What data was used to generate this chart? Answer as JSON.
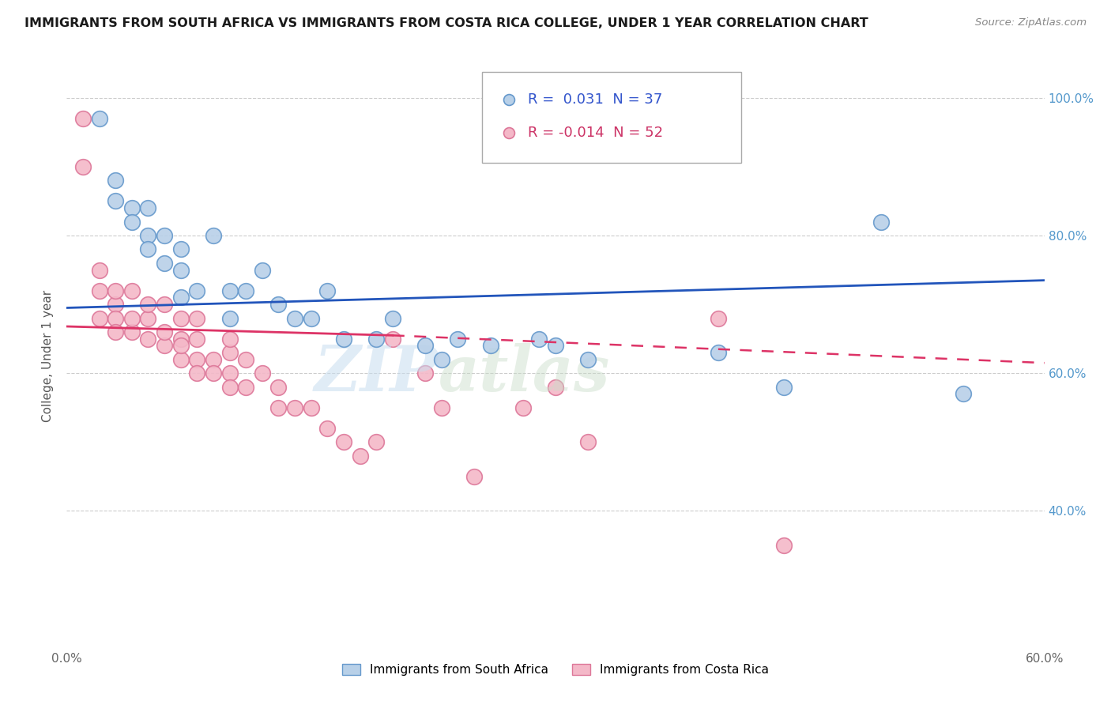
{
  "title": "IMMIGRANTS FROM SOUTH AFRICA VS IMMIGRANTS FROM COSTA RICA COLLEGE, UNDER 1 YEAR CORRELATION CHART",
  "source": "Source: ZipAtlas.com",
  "ylabel": "College, Under 1 year",
  "xmin": 0.0,
  "xmax": 0.6,
  "ymin": 0.2,
  "ymax": 1.05,
  "x_ticks": [
    0.0,
    0.1,
    0.2,
    0.3,
    0.4,
    0.5,
    0.6
  ],
  "x_tick_labels": [
    "0.0%",
    "",
    "",
    "",
    "",
    "",
    "60.0%"
  ],
  "y_ticks": [
    0.4,
    0.6,
    0.8,
    1.0
  ],
  "y_tick_labels": [
    "40.0%",
    "60.0%",
    "80.0%",
    "100.0%"
  ],
  "legend_blue_r": "0.031",
  "legend_blue_n": "37",
  "legend_pink_r": "-0.014",
  "legend_pink_n": "52",
  "legend_blue_label": "Immigrants from South Africa",
  "legend_pink_label": "Immigrants from Costa Rica",
  "blue_color": "#b8d0e8",
  "blue_edge": "#6699cc",
  "pink_color": "#f4b8c8",
  "pink_edge": "#dd7799",
  "trendline_blue": "#2255bb",
  "trendline_pink": "#dd3366",
  "blue_scatter_x": [
    0.02,
    0.03,
    0.03,
    0.04,
    0.04,
    0.05,
    0.05,
    0.05,
    0.06,
    0.06,
    0.07,
    0.07,
    0.07,
    0.08,
    0.09,
    0.1,
    0.1,
    0.11,
    0.12,
    0.13,
    0.14,
    0.15,
    0.16,
    0.17,
    0.19,
    0.2,
    0.22,
    0.23,
    0.24,
    0.26,
    0.29,
    0.3,
    0.32,
    0.4,
    0.44,
    0.5,
    0.55
  ],
  "blue_scatter_y": [
    0.97,
    0.88,
    0.85,
    0.84,
    0.82,
    0.8,
    0.78,
    0.84,
    0.8,
    0.76,
    0.78,
    0.75,
    0.71,
    0.72,
    0.8,
    0.72,
    0.68,
    0.72,
    0.75,
    0.7,
    0.68,
    0.68,
    0.72,
    0.65,
    0.65,
    0.68,
    0.64,
    0.62,
    0.65,
    0.64,
    0.65,
    0.64,
    0.62,
    0.63,
    0.58,
    0.82,
    0.57
  ],
  "pink_scatter_x": [
    0.01,
    0.01,
    0.02,
    0.02,
    0.02,
    0.03,
    0.03,
    0.03,
    0.03,
    0.04,
    0.04,
    0.04,
    0.05,
    0.05,
    0.05,
    0.06,
    0.06,
    0.06,
    0.07,
    0.07,
    0.07,
    0.07,
    0.08,
    0.08,
    0.08,
    0.08,
    0.09,
    0.09,
    0.1,
    0.1,
    0.1,
    0.1,
    0.11,
    0.11,
    0.12,
    0.13,
    0.13,
    0.14,
    0.15,
    0.16,
    0.17,
    0.18,
    0.19,
    0.2,
    0.22,
    0.23,
    0.25,
    0.28,
    0.3,
    0.32,
    0.4,
    0.44
  ],
  "pink_scatter_y": [
    0.97,
    0.9,
    0.75,
    0.68,
    0.72,
    0.7,
    0.68,
    0.66,
    0.72,
    0.66,
    0.68,
    0.72,
    0.65,
    0.68,
    0.7,
    0.64,
    0.66,
    0.7,
    0.62,
    0.65,
    0.68,
    0.64,
    0.62,
    0.65,
    0.6,
    0.68,
    0.62,
    0.6,
    0.6,
    0.63,
    0.65,
    0.58,
    0.58,
    0.62,
    0.6,
    0.58,
    0.55,
    0.55,
    0.55,
    0.52,
    0.5,
    0.48,
    0.5,
    0.65,
    0.6,
    0.55,
    0.45,
    0.55,
    0.58,
    0.5,
    0.68,
    0.35
  ]
}
